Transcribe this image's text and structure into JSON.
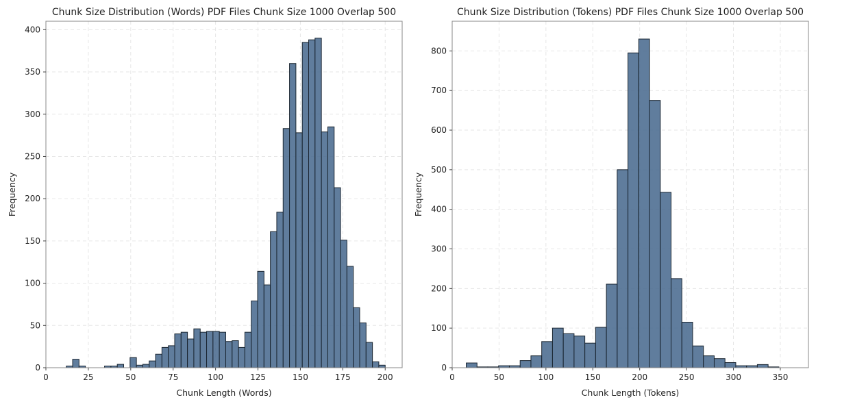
{
  "chart_data": [
    {
      "type": "bar",
      "title": "Chunk Size Distribution (Words) PDF Files Chunk Size 1000 Overlap 500",
      "xlabel": "Chunk Length (Words)",
      "ylabel": "Frequency",
      "xlim": [
        0,
        210
      ],
      "ylim": [
        0,
        410
      ],
      "xticks": [
        0,
        25,
        50,
        75,
        100,
        125,
        150,
        175,
        200
      ],
      "yticks": [
        0,
        50,
        100,
        150,
        200,
        250,
        300,
        350,
        400
      ],
      "grid": true,
      "bar_color": "#4a6b8f",
      "edge_color": "#1a2530",
      "bin_start": 12,
      "bin_width": 3.76,
      "values": [
        2,
        10,
        2,
        0,
        0,
        0,
        2,
        2,
        4,
        0,
        12,
        3,
        4,
        8,
        16,
        24,
        26,
        40,
        42,
        34,
        46,
        42,
        43,
        43,
        42,
        31,
        32,
        24,
        42,
        79,
        114,
        98,
        161,
        184,
        283,
        360,
        278,
        385,
        388,
        390,
        279,
        285,
        213,
        151,
        120,
        71,
        53,
        30,
        7,
        3
      ]
    },
    {
      "type": "bar",
      "title": "Chunk Size Distribution (Tokens) PDF Files Chunk Size 1000 Overlap 500",
      "xlabel": "Chunk Length (Tokens)",
      "ylabel": "Frequency",
      "xlim": [
        0,
        380
      ],
      "ylim": [
        0,
        875
      ],
      "xticks": [
        0,
        50,
        100,
        150,
        200,
        250,
        300,
        350
      ],
      "yticks": [
        0,
        100,
        200,
        300,
        400,
        500,
        600,
        700,
        800
      ],
      "grid": true,
      "bar_color": "#4a6b8f",
      "edge_color": "#1a2530",
      "bin_start": 15,
      "bin_width": 11.5,
      "values": [
        12,
        2,
        2,
        5,
        5,
        18,
        30,
        66,
        100,
        86,
        80,
        62,
        102,
        211,
        500,
        795,
        830,
        675,
        443,
        225,
        115,
        55,
        30,
        23,
        13,
        5,
        5,
        8,
        2
      ]
    }
  ]
}
